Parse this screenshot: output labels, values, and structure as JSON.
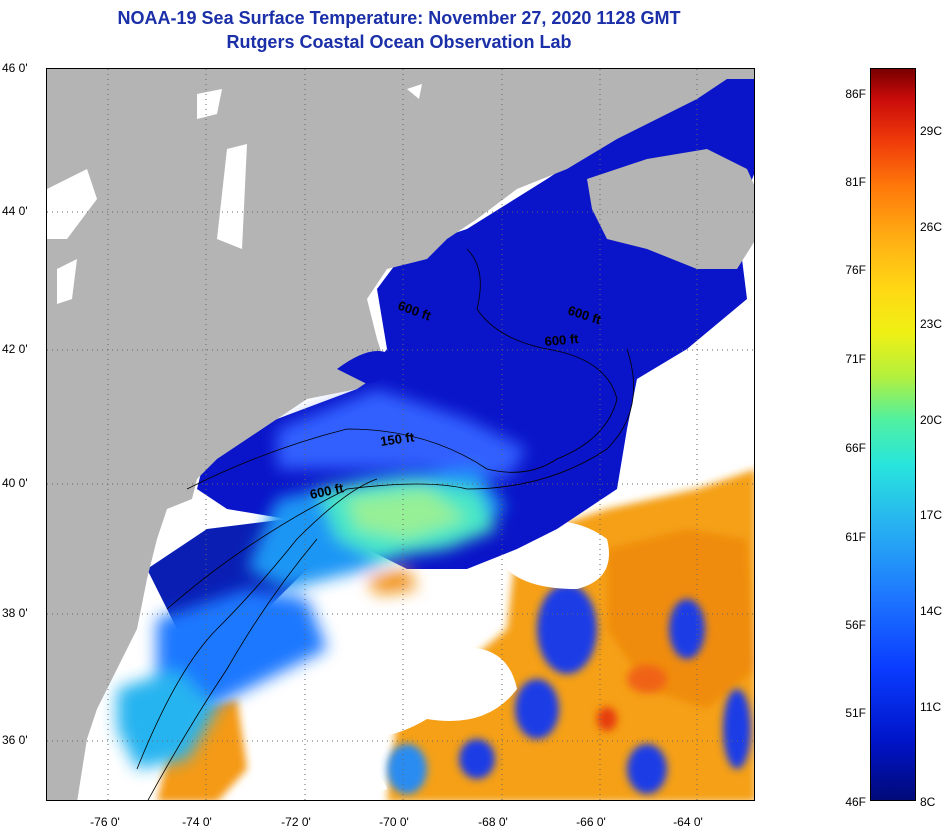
{
  "title": {
    "line1": "NOAA-19 Sea Surface Temperature:  November 27, 2020 1128 GMT",
    "line2": "Rutgers Coastal Ocean Observation Lab"
  },
  "lat_labels": [
    "46 0'",
    "44 0'",
    "42 0'",
    "40 0'",
    "38 0'",
    "36 0'"
  ],
  "lon_labels": [
    "-76 0'",
    "-74 0'",
    "-72 0'",
    "-70 0'",
    "-68 0'",
    "-66 0'",
    "-64 0'"
  ],
  "contour_labels": [
    "600 ft",
    "600 ft",
    "600 ft",
    "150 ft",
    "600 ft"
  ],
  "colorbar": {
    "fahrenheit": [
      "86F",
      "81F",
      "76F",
      "71F",
      "66F",
      "61F",
      "56F",
      "51F",
      "46F"
    ],
    "celsius": [
      "29C",
      "26C",
      "23C",
      "20C",
      "17C",
      "14C",
      "11C",
      "8C"
    ]
  },
  "colors": {
    "land": "#b4b4b4",
    "cloud": "#ffffff",
    "deep_blue": "#0a14c8",
    "title": "#1a2fa8"
  }
}
